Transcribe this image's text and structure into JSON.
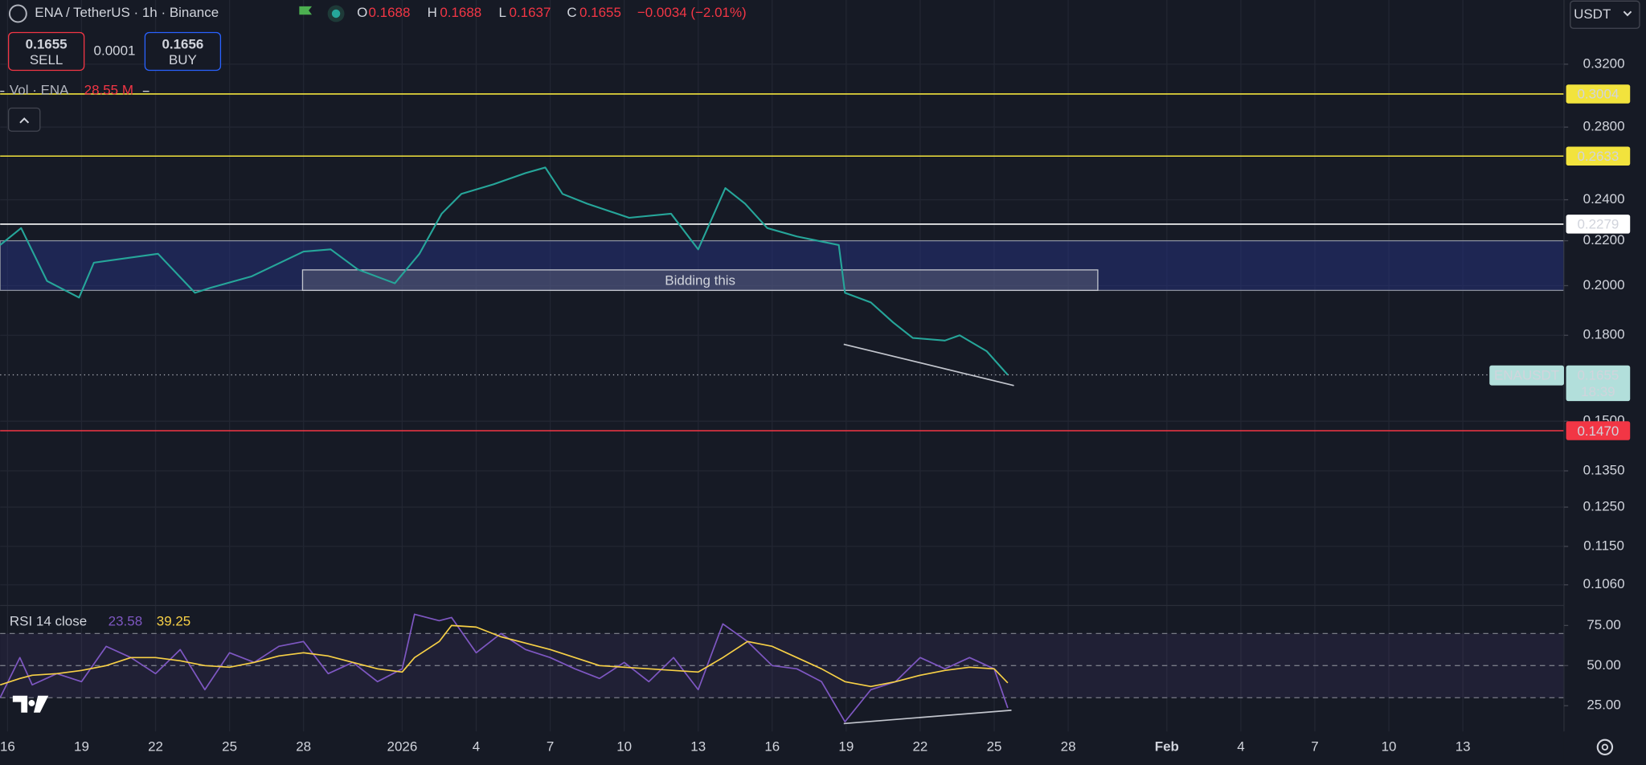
{
  "header": {
    "symbol": "ENA / TetherUS · 1h · Binance",
    "open_key": "O",
    "open": "0.1688",
    "high_key": "H",
    "high": "0.1688",
    "low_key": "L",
    "low": "0.1637",
    "close_key": "C",
    "close": "0.1655",
    "change": "−0.0034 (−2.01%)"
  },
  "currency": "USDT",
  "trade": {
    "sell_price": "0.1655",
    "sell": "SELL",
    "spread": "0.0001",
    "buy_price": "0.1656",
    "buy": "BUY"
  },
  "volume": {
    "label": "Vol · ENA",
    "value": "28.55 M"
  },
  "chart_data": [
    {
      "type": "line",
      "log_scale": true,
      "grid": true,
      "x": [
        -0.3,
        0.55,
        1.6,
        2.9,
        3.5,
        6.1,
        7.6,
        8.2,
        9.9,
        12.0,
        13.1,
        14.2,
        15.7,
        16.7,
        17.6,
        18.4,
        19.7,
        21.0,
        21.8,
        22.5,
        23.5,
        25.2,
        26.9,
        28.0,
        29.1,
        29.9,
        30.8,
        32.0,
        33.7,
        33.95,
        35.0,
        35.9,
        36.7,
        38.0,
        38.6,
        39.7,
        40.55
      ],
      "xlim": [
        -0.3,
        63.1
      ],
      "xticks": [
        {
          "value": 0,
          "label": "16"
        },
        {
          "value": 3,
          "label": "19"
        },
        {
          "value": 6,
          "label": "22"
        },
        {
          "value": 9,
          "label": "25"
        },
        {
          "value": 12,
          "label": "28"
        },
        {
          "value": 16,
          "label": "2026"
        },
        {
          "value": 19,
          "label": "4"
        },
        {
          "value": 22,
          "label": "7"
        },
        {
          "value": 25,
          "label": "10"
        },
        {
          "value": 28,
          "label": "13"
        },
        {
          "value": 31,
          "label": "16"
        },
        {
          "value": 34,
          "label": "19"
        },
        {
          "value": 37,
          "label": "22"
        },
        {
          "value": 40,
          "label": "25"
        },
        {
          "value": 43,
          "label": "28"
        },
        {
          "value": 47,
          "label": "Feb"
        },
        {
          "value": 50,
          "label": "4"
        },
        {
          "value": 53,
          "label": "7"
        },
        {
          "value": 56,
          "label": "10"
        },
        {
          "value": 59,
          "label": "13"
        }
      ],
      "ylim": [
        0.1019,
        0.3667
      ],
      "yticks": [
        {
          "value": 0.32,
          "label": "0.3200"
        },
        {
          "value": 0.28,
          "label": "0.2800"
        },
        {
          "value": 0.24,
          "label": "0.2400"
        },
        {
          "value": 0.22,
          "label": "0.2200"
        },
        {
          "value": 0.2,
          "label": "0.2000"
        },
        {
          "value": 0.18,
          "label": "0.1800"
        },
        {
          "value": 0.15,
          "label": "0.1500"
        },
        {
          "value": 0.135,
          "label": "0.1350"
        },
        {
          "value": 0.125,
          "label": "0.1250"
        },
        {
          "value": 0.115,
          "label": "0.1150"
        },
        {
          "value": 0.106,
          "label": "0.1060"
        }
      ],
      "series": [
        {
          "name": "ENAUSDT",
          "color": "#26a69a",
          "values": [
            0.218,
            0.226,
            0.202,
            0.195,
            0.21,
            0.214,
            0.197,
            0.199,
            0.204,
            0.215,
            0.216,
            0.207,
            0.201,
            0.214,
            0.233,
            0.243,
            0.248,
            0.254,
            0.257,
            0.243,
            0.238,
            0.231,
            0.233,
            0.216,
            0.246,
            0.238,
            0.226,
            0.222,
            0.218,
            0.197,
            0.193,
            0.185,
            0.179,
            0.178,
            0.18,
            0.174,
            0.1655
          ]
        }
      ],
      "last_price": {
        "value": 0.1655,
        "countdown": "18:39"
      },
      "levels": [
        {
          "value": 0.3004,
          "color": "#f2e33d"
        },
        {
          "value": 0.2633,
          "color": "#f2e33d"
        },
        {
          "value": 0.2279,
          "color": "#ffffff"
        },
        {
          "value": 0.147,
          "label": "0.1470",
          "color": "#f23645"
        }
      ],
      "zones": [
        {
          "top": 0.22,
          "bottom": 0.198,
          "color": "#26327a"
        }
      ],
      "annotations": [
        {
          "text": "Bidding this",
          "x": [
            11.96,
            44.2
          ],
          "y": [
            0.2068,
            0.198
          ]
        }
      ],
      "trendlines": [
        {
          "x": [
            33.9,
            40.8
          ],
          "y": [
            0.1766,
            0.1618
          ]
        }
      ]
    },
    {
      "type": "line",
      "title": "RSI 14 close",
      "x": [
        -0.3,
        0.5,
        1,
        2,
        3,
        4,
        5,
        6,
        7,
        8,
        9,
        10,
        11,
        12,
        13,
        14,
        15,
        16,
        16.5,
        17.5,
        18,
        19,
        20,
        21,
        22,
        23,
        24,
        25,
        26,
        27,
        28,
        29,
        30,
        31,
        32,
        33,
        33.95,
        35,
        36,
        37,
        38,
        39,
        40,
        40.55
      ],
      "xlim": [
        -0.3,
        63.1
      ],
      "ylim": [
        9,
        86.8
      ],
      "yticks": [
        {
          "value": 75,
          "label": "75.00"
        },
        {
          "value": 50,
          "label": "50.00"
        },
        {
          "value": 25,
          "label": "25.00"
        }
      ],
      "bands": [
        70,
        50,
        30
      ],
      "series": [
        {
          "color": "#7e57c2",
          "values": [
            30,
            55,
            38,
            45,
            40,
            62,
            55,
            45,
            60,
            35,
            58,
            52,
            62,
            65,
            45,
            52,
            40,
            48,
            82,
            78,
            80,
            58,
            70,
            60,
            55,
            48,
            42,
            52,
            40,
            55,
            35,
            76,
            65,
            50,
            48,
            40,
            15,
            35,
            40,
            55,
            48,
            55,
            48,
            23.58
          ]
        },
        {
          "color": "#f7d046",
          "values": [
            38,
            42,
            44,
            45,
            47,
            50,
            55,
            55,
            53,
            50,
            49,
            52,
            56,
            58,
            56,
            52,
            48,
            46,
            55,
            65,
            75,
            74,
            68,
            64,
            60,
            55,
            50,
            49,
            48,
            47,
            46,
            55,
            65,
            62,
            55,
            48,
            40,
            37,
            40,
            44,
            47,
            49,
            48,
            39.25
          ]
        }
      ],
      "trendlines": [
        {
          "x": [
            33.9,
            40.7
          ],
          "y": [
            13.9,
            22.2
          ]
        }
      ]
    }
  ]
}
